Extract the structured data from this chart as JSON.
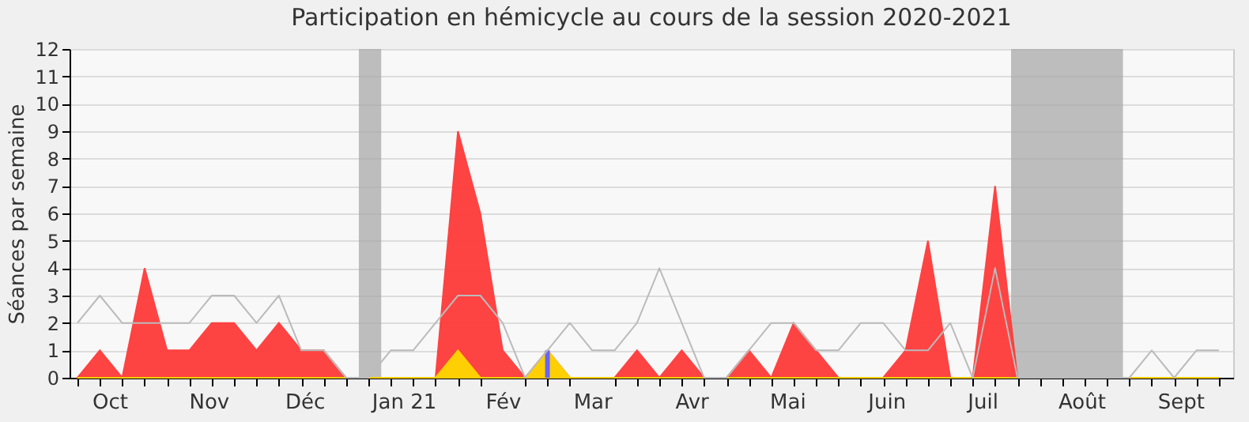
{
  "chart_data": {
    "type": "area",
    "title": "Participation en hémicycle au cours de la session 2020-2021",
    "ylabel": "Séances par semaine",
    "x": [
      "2020-09-21",
      "2020-09-28",
      "2020-10-05",
      "2020-10-12",
      "2020-10-19",
      "2020-10-26",
      "2020-11-02",
      "2020-11-09",
      "2020-11-16",
      "2020-11-23",
      "2020-11-30",
      "2020-12-07",
      "2020-12-14",
      "2020-12-21",
      "2020-12-28",
      "2021-01-04",
      "2021-01-11",
      "2021-01-18",
      "2021-01-25",
      "2021-02-01",
      "2021-02-08",
      "2021-02-15",
      "2021-02-22",
      "2021-03-01",
      "2021-03-08",
      "2021-03-15",
      "2021-03-22",
      "2021-03-29",
      "2021-04-05",
      "2021-04-12",
      "2021-04-19",
      "2021-04-26",
      "2021-05-03",
      "2021-05-10",
      "2021-05-17",
      "2021-05-24",
      "2021-05-31",
      "2021-06-07",
      "2021-06-14",
      "2021-06-21",
      "2021-06-28",
      "2021-07-05",
      "2021-07-12",
      "2021-07-19",
      "2021-07-26",
      "2021-08-02",
      "2021-08-09",
      "2021-08-16",
      "2021-08-23",
      "2021-08-30",
      "2021-09-06",
      "2021-09-13"
    ],
    "series": [
      {
        "color": "#ff3a3a",
        "values": [
          0,
          1,
          0,
          4,
          1,
          1,
          2,
          2,
          1,
          2,
          1,
          1,
          0,
          0,
          0,
          0,
          0,
          9,
          6,
          1,
          0,
          1,
          0,
          0,
          0,
          1,
          0,
          1,
          0,
          0,
          1,
          0,
          2,
          1,
          0,
          0,
          0,
          1,
          5,
          0,
          0,
          7,
          0,
          0,
          0,
          0,
          0,
          0,
          0,
          0,
          0,
          0
        ]
      },
      {
        "color": "#ffd700",
        "values": [
          0,
          0,
          0,
          0,
          0,
          0,
          0,
          0,
          0,
          0,
          0,
          0,
          0,
          0,
          0,
          0,
          0,
          1,
          0,
          0,
          0,
          1,
          0,
          0,
          0,
          0,
          0,
          0,
          0,
          0,
          0,
          0,
          0,
          0,
          0,
          0,
          0,
          0,
          0,
          0,
          0,
          0,
          0,
          0,
          0,
          0,
          0,
          0,
          0,
          0,
          0,
          0
        ]
      },
      {
        "type": "bar",
        "color": "#6666ff",
        "values": [
          null,
          null,
          null,
          null,
          null,
          null,
          null,
          null,
          null,
          null,
          null,
          null,
          null,
          null,
          null,
          null,
          null,
          null,
          null,
          null,
          null,
          1,
          null,
          null,
          null,
          null,
          null,
          null,
          null,
          null,
          null,
          null,
          null,
          null,
          null,
          null,
          null,
          null,
          null,
          null,
          null,
          null,
          null,
          null,
          null,
          null,
          null,
          null,
          null,
          null,
          null,
          null
        ]
      },
      {
        "type": "line",
        "color": "#bbbbbb",
        "values": [
          2,
          3,
          2,
          2,
          2,
          2,
          3,
          3,
          2,
          3,
          1,
          1,
          0,
          0,
          1,
          1,
          2,
          3,
          3,
          2,
          0,
          1,
          2,
          1,
          1,
          2,
          4,
          2,
          0,
          0,
          1,
          2,
          2,
          1,
          1,
          2,
          2,
          1,
          1,
          2,
          0,
          4,
          0,
          0,
          0,
          0,
          0,
          0,
          1,
          0,
          1,
          1
        ]
      }
    ],
    "xlim": [
      "2020-09-21",
      "2021-09-15"
    ],
    "xticks": [
      {
        "value": "2020-10-01",
        "label": "Oct"
      },
      {
        "value": "2020-11-01",
        "label": "Nov"
      },
      {
        "value": "2020-12-01",
        "label": "Déc"
      },
      {
        "value": "2021-01-01",
        "label": "Jan 21"
      },
      {
        "value": "2021-02-01",
        "label": "Fév"
      },
      {
        "value": "2021-03-01",
        "label": "Mar"
      },
      {
        "value": "2021-04-01",
        "label": "Avr"
      },
      {
        "value": "2021-05-01",
        "label": "Mai"
      },
      {
        "value": "2021-06-01",
        "label": "Juin"
      },
      {
        "value": "2021-07-01",
        "label": "Juil"
      },
      {
        "value": "2021-08-01",
        "label": "Août"
      },
      {
        "value": "2021-09-01",
        "label": "Sept"
      }
    ],
    "ylim": [
      0,
      12
    ],
    "yticks": [
      0,
      1,
      2,
      3,
      4,
      5,
      6,
      7,
      8,
      9,
      10,
      11,
      12
    ],
    "grid": "y",
    "bands": [
      {
        "axis": "x",
        "from": "2020-12-18",
        "to": "2020-12-25",
        "color": "#aaaaaa"
      },
      {
        "axis": "x",
        "from": "2021-07-10",
        "to": "2021-08-14",
        "color": "#aaaaaa"
      }
    ]
  }
}
